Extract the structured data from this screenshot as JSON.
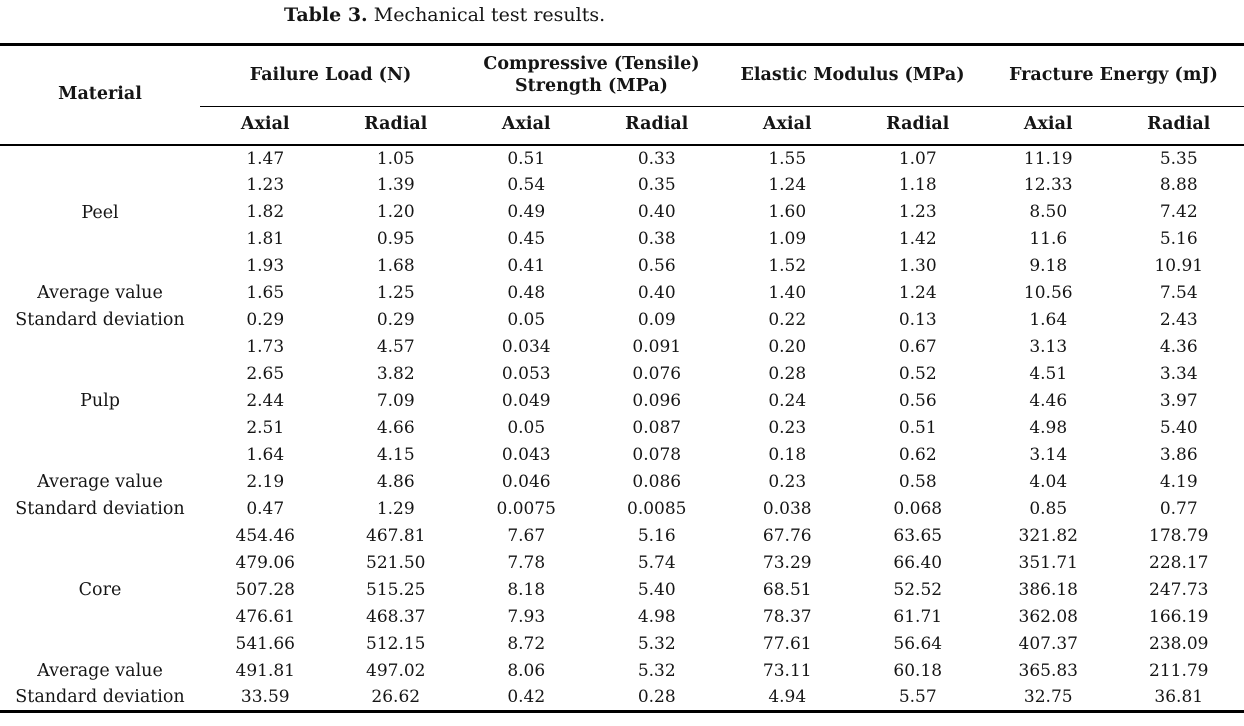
{
  "caption": {
    "label": "Table 3.",
    "text": "Mechanical test results."
  },
  "colors": {
    "background": "#ffffff",
    "text": "#151515",
    "rule": "#000000"
  },
  "table": {
    "material_header": "Material",
    "group_headers": [
      {
        "label": "Failure Load (N)"
      },
      {
        "label": "Compressive (Tensile) Strength (MPa)"
      },
      {
        "label": "Elastic Modulus (MPa)"
      },
      {
        "label": "Fracture Energy (mJ)"
      }
    ],
    "sub_headers": [
      "Axial",
      "Radial"
    ],
    "row_labels": {
      "average": "Average value",
      "std_dev": "Standard deviation"
    },
    "groups": [
      {
        "material": "Peel",
        "samples": [
          [
            "1.47",
            "1.05",
            "0.51",
            "0.33",
            "1.55",
            "1.07",
            "11.19",
            "5.35"
          ],
          [
            "1.23",
            "1.39",
            "0.54",
            "0.35",
            "1.24",
            "1.18",
            "12.33",
            "8.88"
          ],
          [
            "1.82",
            "1.20",
            "0.49",
            "0.40",
            "1.60",
            "1.23",
            "8.50",
            "7.42"
          ],
          [
            "1.81",
            "0.95",
            "0.45",
            "0.38",
            "1.09",
            "1.42",
            "11.6",
            "5.16"
          ],
          [
            "1.93",
            "1.68",
            "0.41",
            "0.56",
            "1.52",
            "1.30",
            "9.18",
            "10.91"
          ]
        ],
        "average": [
          "1.65",
          "1.25",
          "0.48",
          "0.40",
          "1.40",
          "1.24",
          "10.56",
          "7.54"
        ],
        "std_dev": [
          "0.29",
          "0.29",
          "0.05",
          "0.09",
          "0.22",
          "0.13",
          "1.64",
          "2.43"
        ]
      },
      {
        "material": "Pulp",
        "samples": [
          [
            "1.73",
            "4.57",
            "0.034",
            "0.091",
            "0.20",
            "0.67",
            "3.13",
            "4.36"
          ],
          [
            "2.65",
            "3.82",
            "0.053",
            "0.076",
            "0.28",
            "0.52",
            "4.51",
            "3.34"
          ],
          [
            "2.44",
            "7.09",
            "0.049",
            "0.096",
            "0.24",
            "0.56",
            "4.46",
            "3.97"
          ],
          [
            "2.51",
            "4.66",
            "0.05",
            "0.087",
            "0.23",
            "0.51",
            "4.98",
            "5.40"
          ],
          [
            "1.64",
            "4.15",
            "0.043",
            "0.078",
            "0.18",
            "0.62",
            "3.14",
            "3.86"
          ]
        ],
        "average": [
          "2.19",
          "4.86",
          "0.046",
          "0.086",
          "0.23",
          "0.58",
          "4.04",
          "4.19"
        ],
        "std_dev": [
          "0.47",
          "1.29",
          "0.0075",
          "0.0085",
          "0.038",
          "0.068",
          "0.85",
          "0.77"
        ]
      },
      {
        "material": "Core",
        "samples": [
          [
            "454.46",
            "467.81",
            "7.67",
            "5.16",
            "67.76",
            "63.65",
            "321.82",
            "178.79"
          ],
          [
            "479.06",
            "521.50",
            "7.78",
            "5.74",
            "73.29",
            "66.40",
            "351.71",
            "228.17"
          ],
          [
            "507.28",
            "515.25",
            "8.18",
            "5.40",
            "68.51",
            "52.52",
            "386.18",
            "247.73"
          ],
          [
            "476.61",
            "468.37",
            "7.93",
            "4.98",
            "78.37",
            "61.71",
            "362.08",
            "166.19"
          ],
          [
            "541.66",
            "512.15",
            "8.72",
            "5.32",
            "77.61",
            "56.64",
            "407.37",
            "238.09"
          ]
        ],
        "average": [
          "491.81",
          "497.02",
          "8.06",
          "5.32",
          "73.11",
          "60.18",
          "365.83",
          "211.79"
        ],
        "std_dev": [
          "33.59",
          "26.62",
          "0.42",
          "0.28",
          "4.94",
          "5.57",
          "32.75",
          "36.81"
        ]
      }
    ]
  }
}
